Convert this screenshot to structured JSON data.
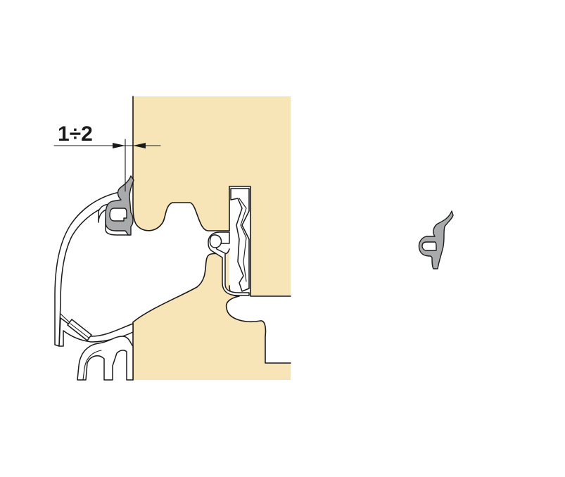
{
  "dimension": {
    "label": "1÷2"
  },
  "colors": {
    "wood": "#f7e5b8",
    "seal": "#a9aaab",
    "seal_light": "#d9dadb",
    "line": "#1a1a1a",
    "background": "#ffffff"
  },
  "icons": {
    "dimension_arrows": "arrow-icon",
    "seal_detail": "gasket-icon"
  }
}
